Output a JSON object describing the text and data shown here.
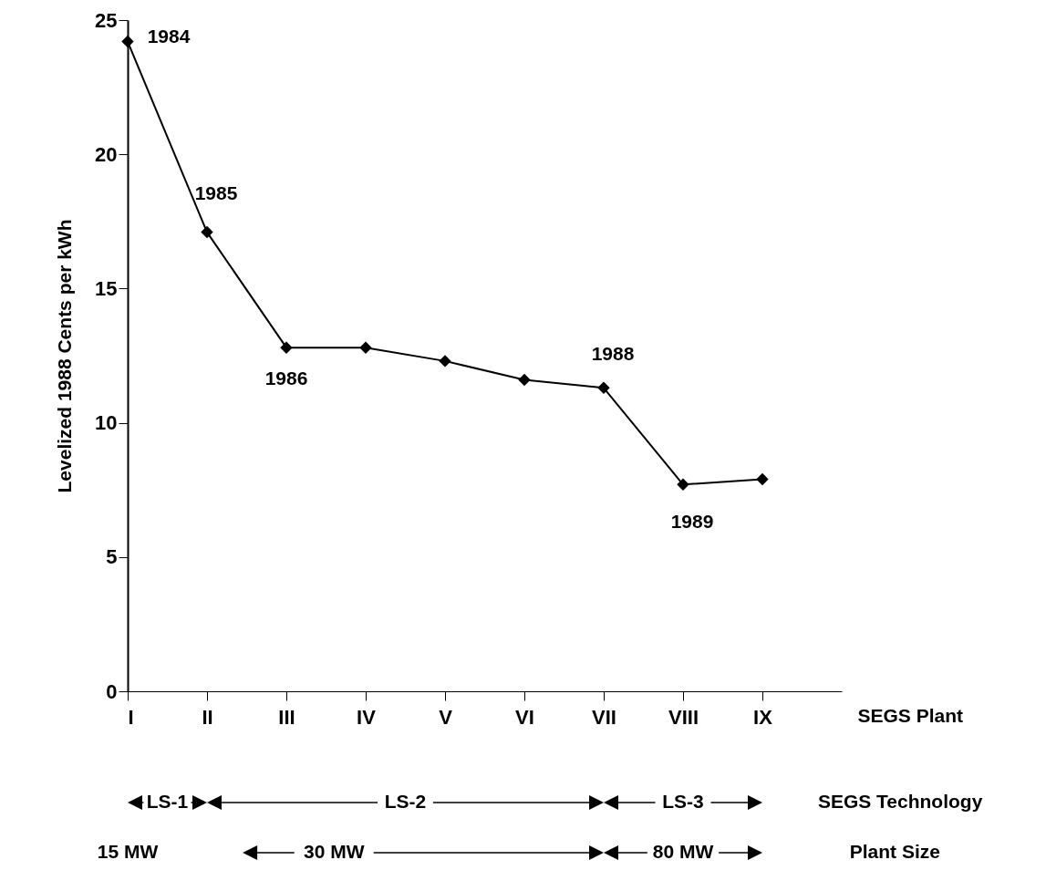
{
  "chart_data": {
    "type": "line",
    "ylabel": "Levelized 1988 Cents per kWh",
    "xlabel": "SEGS Plant",
    "categories": [
      "I",
      "II",
      "III",
      "IV",
      "V",
      "VI",
      "VII",
      "VIII",
      "IX"
    ],
    "series": [
      {
        "color": "#000000",
        "values": [
          24.2,
          17.1,
          12.8,
          12.8,
          12.3,
          11.6,
          11.3,
          7.7,
          7.9
        ]
      }
    ],
    "ylim": [
      0,
      25
    ],
    "yticks": [
      0,
      5,
      10,
      15,
      20,
      25
    ],
    "grid": false,
    "legend": false,
    "marker": "diamond",
    "line_style": "solid",
    "annotations": [
      {
        "text": "1984",
        "x": "I",
        "y": 24.2
      },
      {
        "text": "1985",
        "x": "II",
        "y": 17.1
      },
      {
        "text": "1986",
        "x": "III",
        "y": 12.8
      },
      {
        "text": "1988",
        "x": "VII",
        "y": 11.3
      },
      {
        "text": "1989",
        "x": "VIII",
        "y": 7.7
      },
      "SEGS Technology",
      "LS-1",
      "LS-2",
      "LS-3",
      "Plant Size",
      "15 MW",
      "30 MW",
      "80 MW"
    ]
  }
}
